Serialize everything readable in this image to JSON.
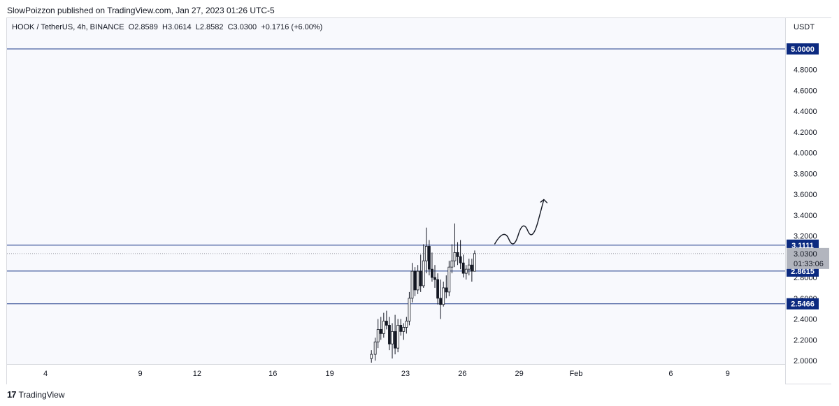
{
  "header": {
    "published": "SlowPoizzon published on TradingView.com, Jan 27, 2023 01:26 UTC-5"
  },
  "legend": {
    "text": "HOOK / TetherUS, 4h, BINANCE  O2.8589  H3.0614  L2.8582  C3.0300  +0.1716 (+6.00%)"
  },
  "axis": {
    "unit": "USDT"
  },
  "footer": {
    "brand": "TradingView",
    "logo_icon": "tradingview-logo-icon"
  },
  "colors": {
    "line": "#1e3a8a",
    "label_bg": "#0c2a80",
    "candle": "#131722",
    "last_price_bg": "#b2b5be",
    "arrow": "#131722"
  },
  "chart_data": {
    "type": "candlestick",
    "symbol": "HOOK / TetherUS",
    "interval": "4h",
    "exchange": "BINANCE",
    "ylim": [
      2.0,
      5.1
    ],
    "y_ticks": [
      "5.0000",
      "4.8000",
      "4.6000",
      "4.4000",
      "4.2000",
      "4.0000",
      "3.8000",
      "3.6000",
      "3.4000",
      "3.2000",
      "3.0000",
      "2.8000",
      "2.6000",
      "2.4000",
      "2.2000",
      "2.0000"
    ],
    "x_ticks": [
      {
        "label": "4",
        "day": 4
      },
      {
        "label": "9",
        "day": 9
      },
      {
        "label": "12",
        "day": 12
      },
      {
        "label": "16",
        "day": 16
      },
      {
        "label": "19",
        "day": 19
      },
      {
        "label": "23",
        "day": 23
      },
      {
        "label": "26",
        "day": 26
      },
      {
        "label": "29",
        "day": 29
      },
      {
        "label": "Feb",
        "day": 32
      },
      {
        "label": "6",
        "day": 37
      },
      {
        "label": "9",
        "day": 40
      }
    ],
    "horizontal_levels": [
      {
        "value": 5.0,
        "label": "5.0000"
      },
      {
        "value": 3.1111,
        "label": "3.1111"
      },
      {
        "value": 2.8615,
        "label": "2.8615"
      },
      {
        "value": 2.5466,
        "label": "2.5466"
      }
    ],
    "last_price": {
      "value": 3.03,
      "label": "3.0300",
      "countdown": "01:33:06"
    },
    "candles": [
      {
        "day": 21.2,
        "o": 2.02,
        "h": 2.1,
        "l": 1.98,
        "c": 2.06
      },
      {
        "day": 21.4,
        "o": 2.06,
        "h": 2.22,
        "l": 2.0,
        "c": 2.18
      },
      {
        "day": 21.55,
        "o": 2.18,
        "h": 2.4,
        "l": 2.12,
        "c": 2.3
      },
      {
        "day": 21.7,
        "o": 2.3,
        "h": 2.42,
        "l": 2.2,
        "c": 2.26
      },
      {
        "day": 21.85,
        "o": 2.26,
        "h": 2.46,
        "l": 2.22,
        "c": 2.38
      },
      {
        "day": 22.0,
        "o": 2.38,
        "h": 2.48,
        "l": 2.3,
        "c": 2.34
      },
      {
        "day": 22.15,
        "o": 2.34,
        "h": 2.42,
        "l": 2.1,
        "c": 2.16
      },
      {
        "day": 22.3,
        "o": 2.16,
        "h": 2.36,
        "l": 2.02,
        "c": 2.28
      },
      {
        "day": 22.45,
        "o": 2.28,
        "h": 2.44,
        "l": 2.06,
        "c": 2.12
      },
      {
        "day": 22.6,
        "o": 2.12,
        "h": 2.4,
        "l": 2.08,
        "c": 2.34
      },
      {
        "day": 22.75,
        "o": 2.34,
        "h": 2.4,
        "l": 2.24,
        "c": 2.28
      },
      {
        "day": 22.9,
        "o": 2.28,
        "h": 2.36,
        "l": 2.2,
        "c": 2.32
      },
      {
        "day": 23.05,
        "o": 2.32,
        "h": 2.42,
        "l": 2.26,
        "c": 2.38
      },
      {
        "day": 23.2,
        "o": 2.38,
        "h": 2.66,
        "l": 2.34,
        "c": 2.6
      },
      {
        "day": 23.35,
        "o": 2.6,
        "h": 2.94,
        "l": 2.56,
        "c": 2.86
      },
      {
        "day": 23.5,
        "o": 2.86,
        "h": 2.9,
        "l": 2.62,
        "c": 2.68
      },
      {
        "day": 23.65,
        "o": 2.68,
        "h": 2.92,
        "l": 2.64,
        "c": 2.86
      },
      {
        "day": 23.8,
        "o": 2.86,
        "h": 3.02,
        "l": 2.66,
        "c": 2.72
      },
      {
        "day": 23.95,
        "o": 2.72,
        "h": 3.12,
        "l": 2.7,
        "c": 2.96
      },
      {
        "day": 24.1,
        "o": 2.96,
        "h": 3.28,
        "l": 2.84,
        "c": 3.1
      },
      {
        "day": 24.25,
        "o": 3.1,
        "h": 3.16,
        "l": 2.82,
        "c": 2.88
      },
      {
        "day": 24.4,
        "o": 2.88,
        "h": 3.04,
        "l": 2.76,
        "c": 2.8
      },
      {
        "day": 24.55,
        "o": 2.8,
        "h": 2.92,
        "l": 2.7,
        "c": 2.78
      },
      {
        "day": 24.7,
        "o": 2.78,
        "h": 2.84,
        "l": 2.54,
        "c": 2.6
      },
      {
        "day": 24.85,
        "o": 2.6,
        "h": 2.78,
        "l": 2.4,
        "c": 2.54
      },
      {
        "day": 25.0,
        "o": 2.54,
        "h": 2.76,
        "l": 2.52,
        "c": 2.7
      },
      {
        "day": 25.15,
        "o": 2.7,
        "h": 2.82,
        "l": 2.6,
        "c": 2.66
      },
      {
        "day": 25.3,
        "o": 2.66,
        "h": 2.96,
        "l": 2.62,
        "c": 2.9
      },
      {
        "day": 25.45,
        "o": 2.9,
        "h": 3.12,
        "l": 2.84,
        "c": 2.96
      },
      {
        "day": 25.6,
        "o": 2.96,
        "h": 3.32,
        "l": 2.9,
        "c": 3.04
      },
      {
        "day": 25.75,
        "o": 3.04,
        "h": 3.14,
        "l": 2.92,
        "c": 3.0
      },
      {
        "day": 25.9,
        "o": 3.0,
        "h": 3.16,
        "l": 2.88,
        "c": 2.94
      },
      {
        "day": 26.05,
        "o": 2.94,
        "h": 3.02,
        "l": 2.8,
        "c": 2.84
      },
      {
        "day": 26.2,
        "o": 2.84,
        "h": 2.92,
        "l": 2.78,
        "c": 2.88
      },
      {
        "day": 26.35,
        "o": 2.88,
        "h": 2.98,
        "l": 2.82,
        "c": 2.92
      },
      {
        "day": 26.5,
        "o": 2.92,
        "h": 2.98,
        "l": 2.76,
        "c": 2.86
      },
      {
        "day": 26.65,
        "o": 2.86,
        "h": 3.06,
        "l": 2.86,
        "c": 3.03
      }
    ],
    "projection_arrow": {
      "points": [
        {
          "day": 27.7,
          "value": 3.12
        },
        {
          "day": 28.2,
          "value": 3.28
        },
        {
          "day": 28.7,
          "value": 3.06
        },
        {
          "day": 29.2,
          "value": 3.36
        },
        {
          "day": 29.7,
          "value": 3.14
        },
        {
          "day": 30.3,
          "value": 3.55
        }
      ]
    }
  }
}
